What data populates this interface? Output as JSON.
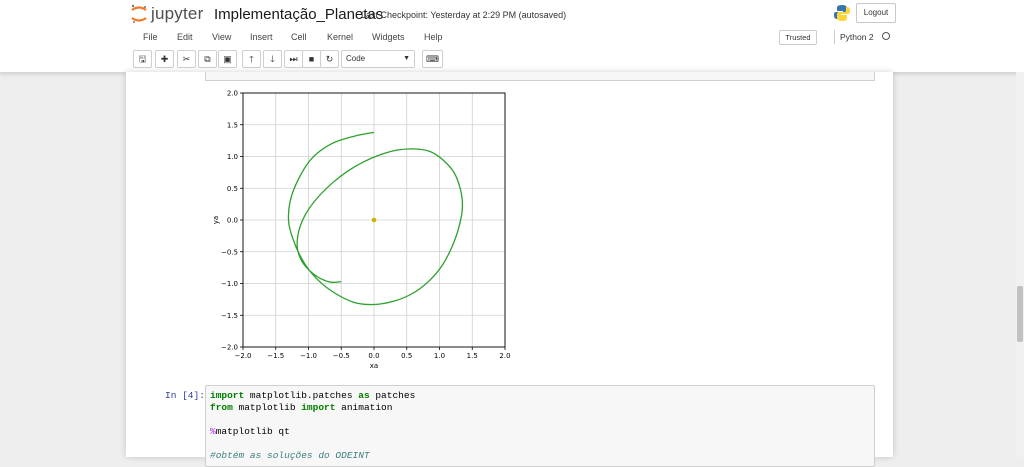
{
  "app": {
    "name": "jupyter",
    "notebook_title": "Implementação_Planetas",
    "checkpoint": "Last Checkpoint: Yesterday at 2:29 PM (autosaved)",
    "logout": "Logout"
  },
  "menu": {
    "items": [
      "File",
      "Edit",
      "View",
      "Insert",
      "Cell",
      "Kernel",
      "Widgets",
      "Help"
    ]
  },
  "status": {
    "trusted": "Trusted",
    "kernel": "Python 2"
  },
  "toolbar": {
    "cell_type": "Code",
    "icons": [
      "save-icon",
      "add-cell-icon",
      "cut-icon",
      "copy-icon",
      "paste-icon",
      "move-up-icon",
      "move-down-icon",
      "run-icon",
      "stop-icon",
      "restart-icon"
    ]
  },
  "cell": {
    "prompt": "In [4]:",
    "lines": [
      {
        "parts": [
          {
            "t": "import",
            "c": "kw"
          },
          {
            "t": " matplotlib.patches ",
            "c": ""
          },
          {
            "t": "as",
            "c": "kw"
          },
          {
            "t": " patches",
            "c": ""
          }
        ]
      },
      {
        "parts": [
          {
            "t": "from",
            "c": "kw"
          },
          {
            "t": " matplotlib ",
            "c": ""
          },
          {
            "t": "import",
            "c": "kw"
          },
          {
            "t": " animation",
            "c": ""
          }
        ]
      },
      {
        "parts": []
      },
      {
        "parts": [
          {
            "t": "%",
            "c": "magic"
          },
          {
            "t": "matplotlib qt",
            "c": ""
          }
        ]
      },
      {
        "parts": []
      },
      {
        "parts": [
          {
            "t": "#obtém as soluções do ODEINT",
            "c": "comment"
          }
        ]
      }
    ]
  },
  "chart_data": {
    "type": "line",
    "xlabel": "xa",
    "ylabel": "ya",
    "xlim": [
      -2.0,
      2.0
    ],
    "ylim": [
      -2.0,
      2.0
    ],
    "xticks": [
      "−2.0",
      "−1.5",
      "−1.0",
      "−0.5",
      "0.0",
      "0.5",
      "1.0",
      "1.5",
      "2.0"
    ],
    "yticks": [
      "2.0",
      "1.5",
      "1.0",
      "0.5",
      "0.0",
      "−0.5",
      "−1.0",
      "−1.5",
      "−2.0"
    ],
    "grid": true,
    "orbit_color": "#2ca02c",
    "sun_color": "#c8b400",
    "sun": {
      "x": 0.0,
      "y": 0.0
    },
    "orbit": {
      "x": [
        0.0,
        -0.3,
        -0.65,
        -0.95,
        -1.15,
        -1.28,
        -1.3,
        -1.2,
        -1.05,
        -0.85,
        -0.6,
        -0.3,
        0.0,
        0.3,
        0.6,
        0.85,
        1.05,
        1.2,
        1.3,
        1.35,
        1.32,
        1.22,
        1.05,
        0.85,
        0.6,
        0.35,
        0.1,
        -0.15,
        -0.4,
        -0.65,
        -0.88,
        -1.05,
        -1.15,
        -1.17,
        -1.1,
        -0.98,
        -0.82,
        -0.65,
        -0.5
      ],
      "y": [
        1.38,
        1.32,
        1.2,
        0.97,
        0.65,
        0.3,
        -0.05,
        -0.4,
        -0.7,
        -0.95,
        -1.15,
        -1.3,
        -1.33,
        -1.28,
        -1.15,
        -0.95,
        -0.7,
        -0.4,
        -0.1,
        0.2,
        0.48,
        0.75,
        0.95,
        1.08,
        1.12,
        1.1,
        1.03,
        0.92,
        0.77,
        0.57,
        0.33,
        0.08,
        -0.18,
        -0.45,
        -0.65,
        -0.8,
        -0.92,
        -0.98,
        -0.97
      ]
    }
  }
}
